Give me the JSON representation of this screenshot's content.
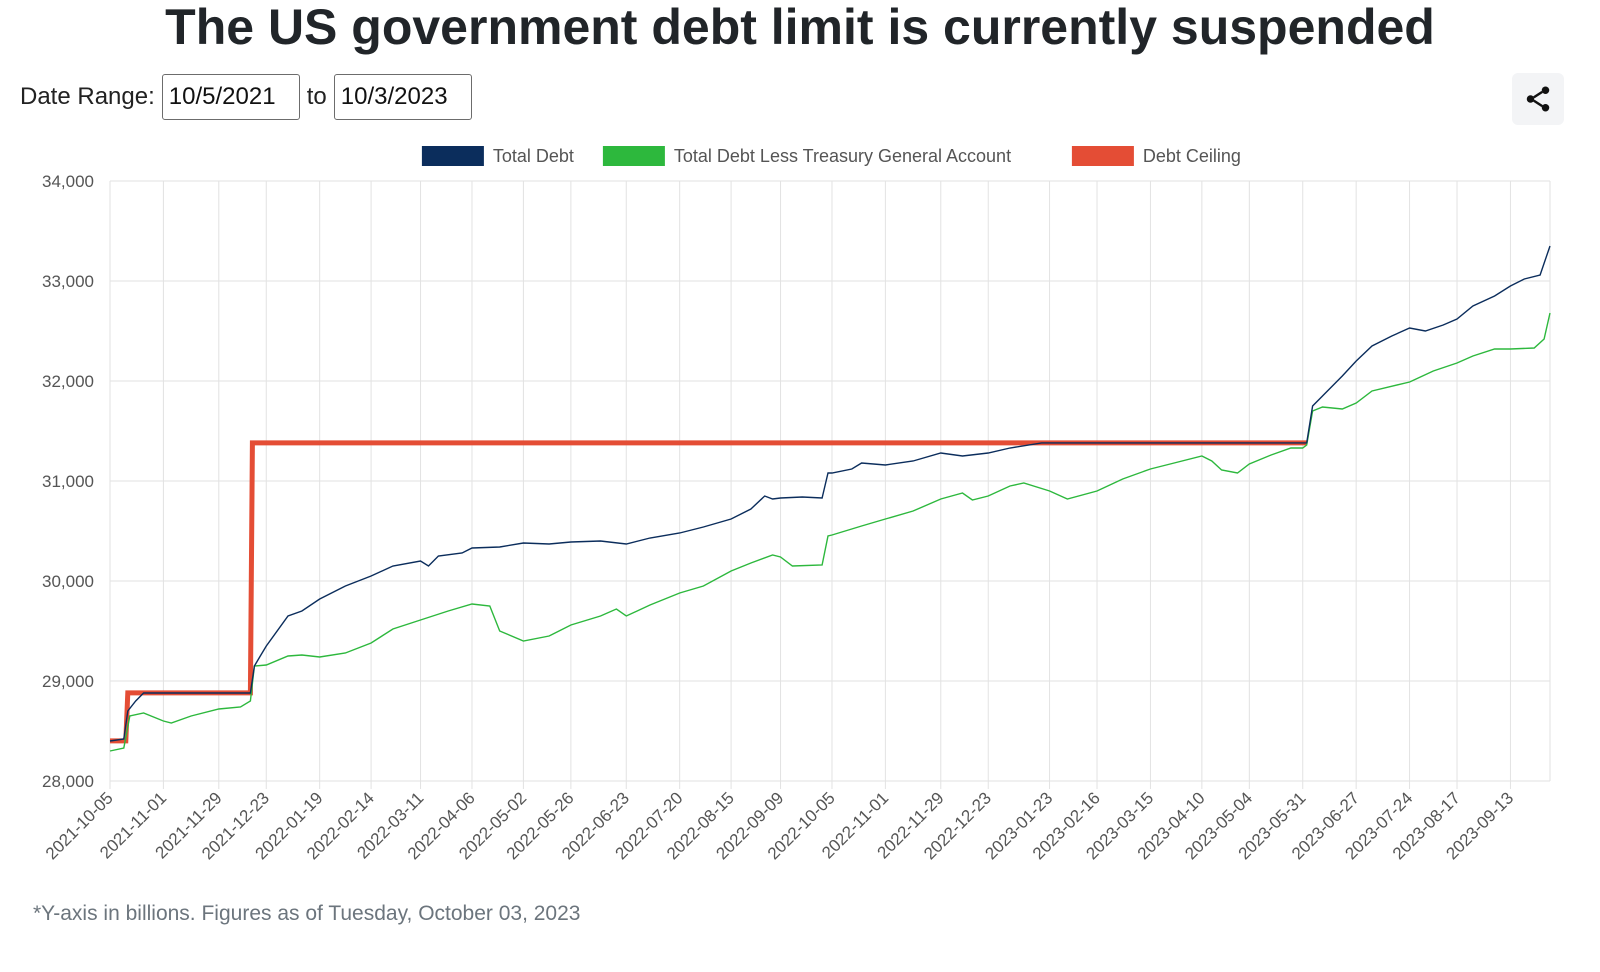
{
  "page": {
    "title": "The US government debt limit is currently suspended",
    "date_range_label": "Date Range:",
    "date_from": "10/5/2021",
    "date_to": "10/3/2023",
    "to_label": "to",
    "footnote": "*Y-axis in billions. Figures as of Tuesday, October 03, 2023",
    "share_icon": "share-icon"
  },
  "chart_data": {
    "type": "line",
    "ylim": [
      28000,
      34000
    ],
    "y_ticks": [
      28000,
      29000,
      30000,
      31000,
      32000,
      33000,
      34000
    ],
    "y_tick_labels": [
      "28,000",
      "29,000",
      "30,000",
      "31,000",
      "32,000",
      "33,000",
      "34,000"
    ],
    "x_range": [
      "2021-10-05",
      "2023-10-03"
    ],
    "x_tick_labels": [
      "2021-10-05",
      "2021-11-01",
      "2021-11-29",
      "2021-12-23",
      "2022-01-19",
      "2022-02-14",
      "2022-03-11",
      "2022-04-06",
      "2022-05-02",
      "2022-05-26",
      "2022-06-23",
      "2022-07-20",
      "2022-08-15",
      "2022-09-09",
      "2022-10-05",
      "2022-11-01",
      "2022-11-29",
      "2022-12-23",
      "2023-01-23",
      "2023-02-16",
      "2023-03-15",
      "2023-04-10",
      "2023-05-04",
      "2023-05-31",
      "2023-06-27",
      "2023-07-24",
      "2023-08-17",
      "2023-09-13"
    ],
    "grid": true,
    "legend_position": "top",
    "series": [
      {
        "name": "Total Debt",
        "color": "#0b2d5c",
        "line_width": 1.4,
        "points": [
          [
            "2021-10-05",
            28400
          ],
          [
            "2021-10-12",
            28420
          ],
          [
            "2021-10-14",
            28700
          ],
          [
            "2021-10-18",
            28800
          ],
          [
            "2021-10-22",
            28880
          ],
          [
            "2021-11-01",
            28880
          ],
          [
            "2021-11-15",
            28880
          ],
          [
            "2021-11-29",
            28880
          ],
          [
            "2021-12-10",
            28880
          ],
          [
            "2021-12-15",
            28880
          ],
          [
            "2021-12-17",
            29150
          ],
          [
            "2021-12-20",
            29250
          ],
          [
            "2021-12-23",
            29350
          ],
          [
            "2022-01-03",
            29650
          ],
          [
            "2022-01-10",
            29700
          ],
          [
            "2022-01-19",
            29820
          ],
          [
            "2022-02-01",
            29950
          ],
          [
            "2022-02-14",
            30050
          ],
          [
            "2022-02-25",
            30150
          ],
          [
            "2022-03-11",
            30200
          ],
          [
            "2022-03-15",
            30150
          ],
          [
            "2022-03-20",
            30250
          ],
          [
            "2022-04-01",
            30280
          ],
          [
            "2022-04-06",
            30330
          ],
          [
            "2022-04-20",
            30340
          ],
          [
            "2022-05-02",
            30380
          ],
          [
            "2022-05-15",
            30370
          ],
          [
            "2022-05-26",
            30390
          ],
          [
            "2022-06-10",
            30400
          ],
          [
            "2022-06-23",
            30370
          ],
          [
            "2022-07-05",
            30430
          ],
          [
            "2022-07-20",
            30480
          ],
          [
            "2022-08-01",
            30540
          ],
          [
            "2022-08-15",
            30620
          ],
          [
            "2022-08-25",
            30720
          ],
          [
            "2022-09-01",
            30850
          ],
          [
            "2022-09-05",
            30820
          ],
          [
            "2022-09-09",
            30830
          ],
          [
            "2022-09-20",
            30840
          ],
          [
            "2022-09-30",
            30830
          ],
          [
            "2022-10-03",
            31080
          ],
          [
            "2022-10-05",
            31080
          ],
          [
            "2022-10-15",
            31120
          ],
          [
            "2022-10-20",
            31180
          ],
          [
            "2022-11-01",
            31160
          ],
          [
            "2022-11-15",
            31200
          ],
          [
            "2022-11-29",
            31280
          ],
          [
            "2022-12-10",
            31250
          ],
          [
            "2022-12-23",
            31280
          ],
          [
            "2023-01-03",
            31330
          ],
          [
            "2023-01-19",
            31381
          ],
          [
            "2023-01-23",
            31381
          ],
          [
            "2023-02-16",
            31381
          ],
          [
            "2023-03-15",
            31381
          ],
          [
            "2023-04-10",
            31381
          ],
          [
            "2023-05-04",
            31381
          ],
          [
            "2023-05-31",
            31381
          ],
          [
            "2023-06-02",
            31381
          ],
          [
            "2023-06-05",
            31750
          ],
          [
            "2023-06-10",
            31850
          ],
          [
            "2023-06-20",
            32050
          ],
          [
            "2023-06-27",
            32200
          ],
          [
            "2023-07-05",
            32350
          ],
          [
            "2023-07-15",
            32450
          ],
          [
            "2023-07-24",
            32530
          ],
          [
            "2023-08-01",
            32500
          ],
          [
            "2023-08-10",
            32560
          ],
          [
            "2023-08-17",
            32620
          ],
          [
            "2023-08-25",
            32750
          ],
          [
            "2023-09-05",
            32850
          ],
          [
            "2023-09-13",
            32950
          ],
          [
            "2023-09-20",
            33020
          ],
          [
            "2023-09-28",
            33060
          ],
          [
            "2023-10-03",
            33350
          ]
        ]
      },
      {
        "name": "Total Debt Less Treasury General Account",
        "color": "#2db83d",
        "line_width": 1.4,
        "points": [
          [
            "2021-10-05",
            28300
          ],
          [
            "2021-10-12",
            28330
          ],
          [
            "2021-10-15",
            28650
          ],
          [
            "2021-10-22",
            28680
          ],
          [
            "2021-11-01",
            28600
          ],
          [
            "2021-11-05",
            28580
          ],
          [
            "2021-11-15",
            28650
          ],
          [
            "2021-11-29",
            28720
          ],
          [
            "2021-12-10",
            28740
          ],
          [
            "2021-12-15",
            28800
          ],
          [
            "2021-12-17",
            29150
          ],
          [
            "2021-12-23",
            29160
          ],
          [
            "2022-01-03",
            29250
          ],
          [
            "2022-01-10",
            29260
          ],
          [
            "2022-01-19",
            29240
          ],
          [
            "2022-02-01",
            29280
          ],
          [
            "2022-02-14",
            29380
          ],
          [
            "2022-02-25",
            29520
          ],
          [
            "2022-03-11",
            29610
          ],
          [
            "2022-03-25",
            29700
          ],
          [
            "2022-04-06",
            29770
          ],
          [
            "2022-04-15",
            29750
          ],
          [
            "2022-04-20",
            29500
          ],
          [
            "2022-05-02",
            29400
          ],
          [
            "2022-05-15",
            29450
          ],
          [
            "2022-05-26",
            29560
          ],
          [
            "2022-06-10",
            29650
          ],
          [
            "2022-06-18",
            29720
          ],
          [
            "2022-06-23",
            29650
          ],
          [
            "2022-07-05",
            29760
          ],
          [
            "2022-07-20",
            29880
          ],
          [
            "2022-08-01",
            29950
          ],
          [
            "2022-08-15",
            30100
          ],
          [
            "2022-08-25",
            30180
          ],
          [
            "2022-09-05",
            30260
          ],
          [
            "2022-09-09",
            30240
          ],
          [
            "2022-09-15",
            30150
          ],
          [
            "2022-09-30",
            30160
          ],
          [
            "2022-10-03",
            30450
          ],
          [
            "2022-10-05",
            30460
          ],
          [
            "2022-10-20",
            30550
          ],
          [
            "2022-11-01",
            30620
          ],
          [
            "2022-11-15",
            30700
          ],
          [
            "2022-11-29",
            30820
          ],
          [
            "2022-12-10",
            30880
          ],
          [
            "2022-12-15",
            30810
          ],
          [
            "2022-12-23",
            30850
          ],
          [
            "2023-01-03",
            30950
          ],
          [
            "2023-01-10",
            30980
          ],
          [
            "2023-01-23",
            30900
          ],
          [
            "2023-02-01",
            30820
          ],
          [
            "2023-02-16",
            30900
          ],
          [
            "2023-03-01",
            31020
          ],
          [
            "2023-03-15",
            31120
          ],
          [
            "2023-03-25",
            31170
          ],
          [
            "2023-04-10",
            31250
          ],
          [
            "2023-04-15",
            31200
          ],
          [
            "2023-04-20",
            31110
          ],
          [
            "2023-04-28",
            31080
          ],
          [
            "2023-05-04",
            31170
          ],
          [
            "2023-05-15",
            31260
          ],
          [
            "2023-05-25",
            31330
          ],
          [
            "2023-05-31",
            31330
          ],
          [
            "2023-06-02",
            31360
          ],
          [
            "2023-06-05",
            31700
          ],
          [
            "2023-06-10",
            31740
          ],
          [
            "2023-06-20",
            31720
          ],
          [
            "2023-06-27",
            31780
          ],
          [
            "2023-07-05",
            31900
          ],
          [
            "2023-07-24",
            31990
          ],
          [
            "2023-08-05",
            32100
          ],
          [
            "2023-08-17",
            32180
          ],
          [
            "2023-08-25",
            32250
          ],
          [
            "2023-09-05",
            32320
          ],
          [
            "2023-09-13",
            32320
          ],
          [
            "2023-09-25",
            32330
          ],
          [
            "2023-09-30",
            32420
          ],
          [
            "2023-10-03",
            32680
          ]
        ]
      },
      {
        "name": "Debt Ceiling",
        "color": "#e44d35",
        "line_width": 5,
        "points": [
          [
            "2021-10-05",
            28401
          ],
          [
            "2021-10-13",
            28401
          ],
          [
            "2021-10-14",
            28881
          ],
          [
            "2021-12-15",
            28881
          ],
          [
            "2021-12-16",
            31381
          ],
          [
            "2023-06-02",
            31381
          ]
        ]
      }
    ]
  }
}
